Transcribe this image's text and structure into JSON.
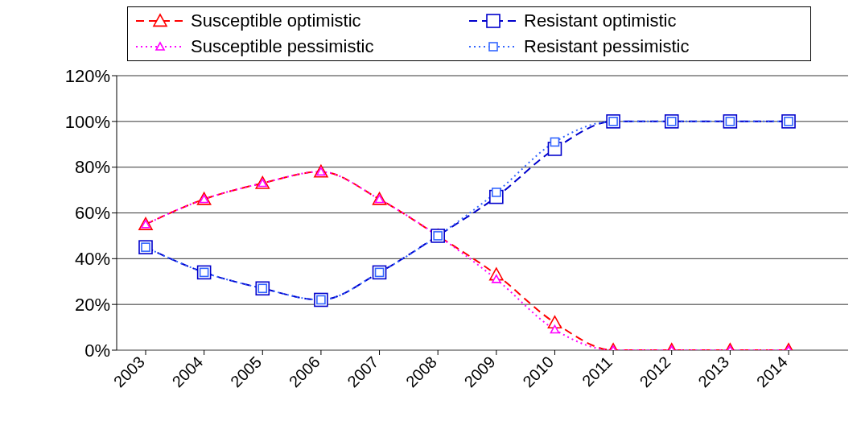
{
  "chart_data": {
    "type": "line",
    "categories": [
      "2003",
      "2004",
      "2005",
      "2006",
      "2007",
      "2008",
      "2009",
      "2010",
      "2011",
      "2012",
      "2013",
      "2014"
    ],
    "series": [
      {
        "name": "Susceptible optimistic",
        "color": "#ff0000",
        "marker": "triangle",
        "line_style": "dashed",
        "values": [
          55,
          66,
          73,
          78,
          66,
          50,
          33,
          12,
          0,
          0,
          0,
          0
        ]
      },
      {
        "name": "Susceptible pessimistic",
        "color": "#ff00ff",
        "marker": "triangle",
        "line_style": "dotted",
        "values": [
          55,
          66,
          73,
          78,
          66,
          50,
          31,
          9,
          0,
          0,
          0,
          0
        ]
      },
      {
        "name": "Resistant optimistic",
        "color": "#0000cc",
        "marker": "square",
        "line_style": "dashed",
        "values": [
          45,
          34,
          27,
          22,
          34,
          50,
          67,
          88,
          100,
          100,
          100,
          100
        ]
      },
      {
        "name": "Resistant pessimistic",
        "color": "#3366ff",
        "marker": "square",
        "line_style": "dotted",
        "values": [
          45,
          34,
          27,
          22,
          34,
          50,
          69,
          91,
          100,
          100,
          100,
          100
        ]
      }
    ],
    "ylim": [
      0,
      120
    ],
    "yticks": [
      {
        "value": 0,
        "label": "0%"
      },
      {
        "value": 20,
        "label": "20%"
      },
      {
        "value": 40,
        "label": "40%"
      },
      {
        "value": 60,
        "label": "60%"
      },
      {
        "value": 80,
        "label": "80%"
      },
      {
        "value": 100,
        "label": "100%"
      },
      {
        "value": 120,
        "label": "120%"
      }
    ],
    "grid": "y",
    "legend": "top"
  }
}
